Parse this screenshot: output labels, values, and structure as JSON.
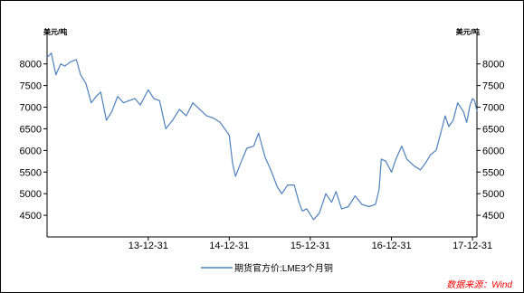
{
  "chart_data": {
    "type": "line",
    "left_unit": "美元/吨",
    "right_unit": "美元/吨",
    "ylim": [
      4000,
      8600
    ],
    "yticks": [
      4500,
      5000,
      5500,
      6000,
      6500,
      7000,
      7500,
      8000
    ],
    "xlim": [
      "2012-10-01",
      "2018-01-20"
    ],
    "xticks": [
      {
        "label": "13-12-31",
        "date": "2013-12-31"
      },
      {
        "label": "14-12-31",
        "date": "2014-12-31"
      },
      {
        "label": "15-12-31",
        "date": "2015-12-31"
      },
      {
        "label": "16-12-31",
        "date": "2016-12-31"
      },
      {
        "label": "17-12-31",
        "date": "2017-12-31"
      }
    ],
    "grid": false,
    "legend_position": "bottom",
    "series": [
      {
        "name": "期货官方价:LME3个月铜",
        "color": "#4f81bd",
        "points": [
          [
            "2012-10-01",
            8150
          ],
          [
            "2012-10-20",
            8250
          ],
          [
            "2012-11-10",
            7750
          ],
          [
            "2012-12-01",
            8000
          ],
          [
            "2012-12-20",
            7950
          ],
          [
            "2013-01-15",
            8050
          ],
          [
            "2013-02-10",
            8100
          ],
          [
            "2013-03-01",
            7750
          ],
          [
            "2013-03-25",
            7550
          ],
          [
            "2013-04-18",
            7100
          ],
          [
            "2013-05-10",
            7250
          ],
          [
            "2013-05-31",
            7350
          ],
          [
            "2013-06-25",
            6700
          ],
          [
            "2013-07-20",
            6900
          ],
          [
            "2013-08-15",
            7250
          ],
          [
            "2013-09-10",
            7100
          ],
          [
            "2013-10-05",
            7150
          ],
          [
            "2013-11-01",
            7200
          ],
          [
            "2013-11-25",
            7050
          ],
          [
            "2013-12-31",
            7400
          ],
          [
            "2014-01-25",
            7200
          ],
          [
            "2014-02-20",
            7150
          ],
          [
            "2014-03-20",
            6500
          ],
          [
            "2014-04-20",
            6700
          ],
          [
            "2014-05-20",
            6950
          ],
          [
            "2014-06-20",
            6800
          ],
          [
            "2014-07-20",
            7100
          ],
          [
            "2014-08-20",
            6950
          ],
          [
            "2014-09-20",
            6800
          ],
          [
            "2014-10-20",
            6750
          ],
          [
            "2014-11-20",
            6650
          ],
          [
            "2014-12-31",
            6350
          ],
          [
            "2015-01-15",
            5700
          ],
          [
            "2015-01-28",
            5400
          ],
          [
            "2015-02-20",
            5700
          ],
          [
            "2015-03-20",
            6050
          ],
          [
            "2015-04-20",
            6100
          ],
          [
            "2015-05-12",
            6400
          ],
          [
            "2015-06-10",
            5850
          ],
          [
            "2015-07-10",
            5500
          ],
          [
            "2015-08-05",
            5150
          ],
          [
            "2015-08-25",
            5000
          ],
          [
            "2015-09-20",
            5200
          ],
          [
            "2015-10-20",
            5200
          ],
          [
            "2015-11-10",
            4800
          ],
          [
            "2015-11-25",
            4600
          ],
          [
            "2015-12-15",
            4650
          ],
          [
            "2016-01-15",
            4400
          ],
          [
            "2016-02-10",
            4550
          ],
          [
            "2016-03-10",
            5000
          ],
          [
            "2016-04-05",
            4800
          ],
          [
            "2016-04-25",
            5050
          ],
          [
            "2016-05-20",
            4650
          ],
          [
            "2016-06-20",
            4700
          ],
          [
            "2016-07-20",
            4950
          ],
          [
            "2016-08-20",
            4750
          ],
          [
            "2016-09-20",
            4700
          ],
          [
            "2016-10-20",
            4750
          ],
          [
            "2016-11-05",
            5100
          ],
          [
            "2016-11-15",
            5800
          ],
          [
            "2016-12-05",
            5750
          ],
          [
            "2016-12-31",
            5500
          ],
          [
            "2017-01-20",
            5800
          ],
          [
            "2017-02-15",
            6100
          ],
          [
            "2017-03-10",
            5800
          ],
          [
            "2017-04-10",
            5650
          ],
          [
            "2017-05-10",
            5550
          ],
          [
            "2017-06-01",
            5700
          ],
          [
            "2017-06-25",
            5900
          ],
          [
            "2017-07-20",
            6000
          ],
          [
            "2017-08-10",
            6400
          ],
          [
            "2017-08-30",
            6800
          ],
          [
            "2017-09-15",
            6550
          ],
          [
            "2017-10-05",
            6700
          ],
          [
            "2017-10-25",
            7100
          ],
          [
            "2017-11-20",
            6900
          ],
          [
            "2017-12-05",
            6650
          ],
          [
            "2017-12-20",
            7050
          ],
          [
            "2017-12-31",
            7200
          ],
          [
            "2018-01-10",
            7150
          ],
          [
            "2018-01-20",
            6900
          ]
        ]
      }
    ]
  },
  "source": "数据来源：Wind"
}
